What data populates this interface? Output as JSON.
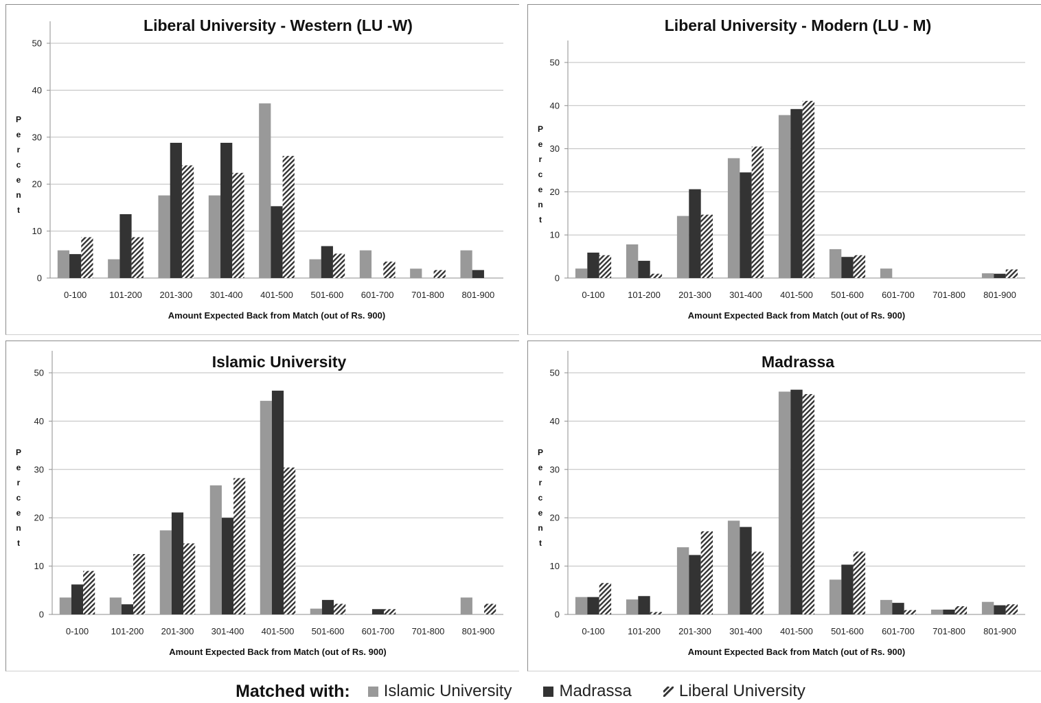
{
  "legend": {
    "title": "Matched with:",
    "series": [
      {
        "name": "Islamic University",
        "color": "#999999",
        "pattern": "solid"
      },
      {
        "name": "Madrassa",
        "color": "#333333",
        "pattern": "solid"
      },
      {
        "name": "Liberal University",
        "color": "#333333",
        "pattern": "hatched"
      }
    ]
  },
  "chart_data": [
    {
      "type": "bar",
      "title": "Liberal University - Western (LU -W)",
      "xlabel": "Amount Expected Back from Match (out of Rs. 900)",
      "ylabel": "Percent",
      "ylim": [
        0,
        50
      ],
      "yticks": [
        0,
        10,
        20,
        30,
        40,
        50
      ],
      "grid": true,
      "categories": [
        "0-100",
        "101-200",
        "201-300",
        "301-400",
        "401-500",
        "501-600",
        "601-700",
        "701-800",
        "801-900"
      ],
      "series": [
        {
          "name": "Islamic University",
          "values": [
            5.9,
            4.0,
            17.6,
            17.6,
            37.2,
            4.0,
            5.9,
            2.0,
            5.9
          ]
        },
        {
          "name": "Madrassa",
          "values": [
            5.1,
            13.6,
            28.8,
            28.8,
            15.3,
            6.8,
            0,
            0,
            1.7
          ]
        },
        {
          "name": "Liberal University",
          "values": [
            8.7,
            8.7,
            24.0,
            22.4,
            26.0,
            5.2,
            3.5,
            1.7,
            0
          ]
        }
      ]
    },
    {
      "type": "bar",
      "title": "Liberal University - Modern (LU - M)",
      "xlabel": "Amount Expected Back from Match (out of Rs. 900)",
      "ylabel": "Percent",
      "ylim": [
        0,
        50
      ],
      "yticks": [
        0,
        10,
        20,
        30,
        40,
        50
      ],
      "grid": true,
      "categories": [
        "0-100",
        "101-200",
        "201-300",
        "301-400",
        "401-500",
        "501-600",
        "601-700",
        "701-800",
        "801-900"
      ],
      "series": [
        {
          "name": "Islamic University",
          "values": [
            2.2,
            7.8,
            14.4,
            27.8,
            37.8,
            6.7,
            2.2,
            0,
            1.1
          ]
        },
        {
          "name": "Madrassa",
          "values": [
            5.9,
            4.0,
            20.6,
            24.5,
            39.2,
            4.9,
            0,
            0,
            1.0
          ]
        },
        {
          "name": "Liberal University",
          "values": [
            5.3,
            1.0,
            14.7,
            30.5,
            41.1,
            5.3,
            0,
            0,
            2.0
          ]
        }
      ]
    },
    {
      "type": "bar",
      "title": "Islamic University",
      "xlabel": "Amount Expected Back from Match (out of Rs. 900)",
      "ylabel": "Percent",
      "ylim": [
        0,
        50
      ],
      "yticks": [
        0,
        10,
        20,
        30,
        40,
        50
      ],
      "grid": true,
      "categories": [
        "0-100",
        "101-200",
        "201-300",
        "301-400",
        "401-500",
        "501-600",
        "601-700",
        "701-800",
        "801-900"
      ],
      "series": [
        {
          "name": "Islamic University",
          "values": [
            3.5,
            3.5,
            17.4,
            26.7,
            44.2,
            1.2,
            0,
            0,
            3.5
          ]
        },
        {
          "name": "Madrassa",
          "values": [
            6.2,
            2.1,
            21.1,
            20.0,
            46.3,
            3.0,
            1.1,
            0,
            0
          ]
        },
        {
          "name": "Liberal University",
          "values": [
            9.0,
            12.5,
            14.7,
            28.2,
            30.4,
            2.2,
            1.1,
            0,
            2.2
          ]
        }
      ]
    },
    {
      "type": "bar",
      "title": "Madrassa",
      "xlabel": "Amount Expected Back from Match (out of Rs. 900)",
      "ylabel": "Percent",
      "ylim": [
        0,
        50
      ],
      "yticks": [
        0,
        10,
        20,
        30,
        40,
        50
      ],
      "grid": true,
      "categories": [
        "0-100",
        "101-200",
        "201-300",
        "301-400",
        "401-500",
        "501-600",
        "601-700",
        "701-800",
        "801-900"
      ],
      "series": [
        {
          "name": "Islamic University",
          "values": [
            3.6,
            3.1,
            13.9,
            19.4,
            46.1,
            7.2,
            3.0,
            1.0,
            2.6
          ]
        },
        {
          "name": "Madrassa",
          "values": [
            3.6,
            3.8,
            12.3,
            18.1,
            46.5,
            10.3,
            2.4,
            1.0,
            1.9
          ]
        },
        {
          "name": "Liberal University",
          "values": [
            6.5,
            0.5,
            17.2,
            13.0,
            45.6,
            13.0,
            0.9,
            1.7,
            2.1
          ]
        }
      ]
    }
  ]
}
